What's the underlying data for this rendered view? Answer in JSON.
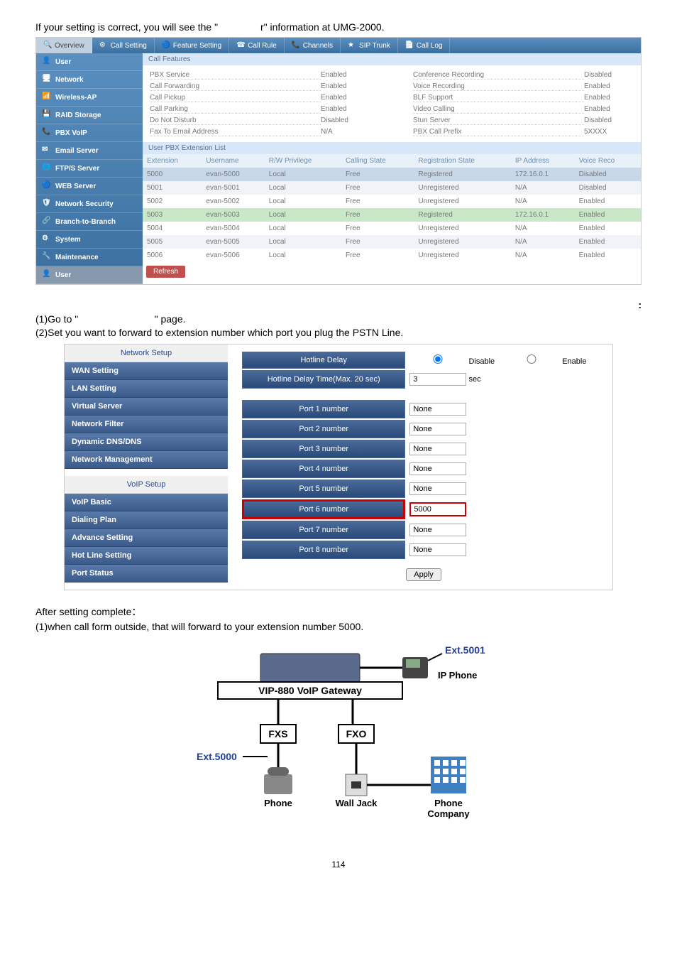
{
  "intro1": "If your setting is correct, you will see the \"",
  "intro2": "r\" information at UMG-2000.",
  "tabs": [
    "Overview",
    "Call Setting",
    "Feature Setting",
    "Call Rule",
    "Channels",
    "SIP Trunk",
    "Call Log"
  ],
  "sidebar_items": [
    "User",
    "Network",
    "Wireless-AP",
    "RAID Storage",
    "PBX VoIP",
    "Email Server",
    "FTP/S Server",
    "WEB Server",
    "Network Security",
    "Branch-to-Branch",
    "System",
    "Maintenance",
    "User"
  ],
  "call_features_header": "Call Features",
  "features_left": [
    {
      "label": "PBX Service",
      "value": "Enabled"
    },
    {
      "label": "Call Forwarding",
      "value": "Enabled"
    },
    {
      "label": "Call Pickup",
      "value": "Enabled"
    },
    {
      "label": "Call Parking",
      "value": "Enabled"
    },
    {
      "label": "Do Not Disturb",
      "value": "Disabled"
    },
    {
      "label": "Fax To Email Address",
      "value": "N/A"
    }
  ],
  "features_right": [
    {
      "label": "Conference Recording",
      "value": "Disabled"
    },
    {
      "label": "Voice Recording",
      "value": "Enabled"
    },
    {
      "label": "BLF Support",
      "value": "Enabled"
    },
    {
      "label": "Video Calling",
      "value": "Enabled"
    },
    {
      "label": "Stun Server",
      "value": "Disabled"
    },
    {
      "label": "PBX Call Prefix",
      "value": "5XXXX"
    }
  ],
  "ext_list_header": "User PBX Extension List",
  "ext_columns": [
    "Extension",
    "Username",
    "R/W Privilege",
    "Calling State",
    "Registration State",
    "IP Address",
    "Voice Reco"
  ],
  "ext_rows": [
    {
      "ext": "5000",
      "user": "evan-5000",
      "priv": "Local",
      "cstate": "Free",
      "rstate": "Registered",
      "ip": "172.16.0.1",
      "voice": "Disabled",
      "cls": "highlight"
    },
    {
      "ext": "5001",
      "user": "evan-5001",
      "priv": "Local",
      "cstate": "Free",
      "rstate": "Unregistered",
      "ip": "N/A",
      "voice": "Disabled",
      "cls": ""
    },
    {
      "ext": "5002",
      "user": "evan-5002",
      "priv": "Local",
      "cstate": "Free",
      "rstate": "Unregistered",
      "ip": "N/A",
      "voice": "Enabled",
      "cls": ""
    },
    {
      "ext": "5003",
      "user": "evan-5003",
      "priv": "Local",
      "cstate": "Free",
      "rstate": "Registered",
      "ip": "172.16.0.1",
      "voice": "Enabled",
      "cls": "highlight-green"
    },
    {
      "ext": "5004",
      "user": "evan-5004",
      "priv": "Local",
      "cstate": "Free",
      "rstate": "Unregistered",
      "ip": "N/A",
      "voice": "Enabled",
      "cls": ""
    },
    {
      "ext": "5005",
      "user": "evan-5005",
      "priv": "Local",
      "cstate": "Free",
      "rstate": "Unregistered",
      "ip": "N/A",
      "voice": "Enabled",
      "cls": ""
    },
    {
      "ext": "5006",
      "user": "evan-5006",
      "priv": "Local",
      "cstate": "Free",
      "rstate": "Unregistered",
      "ip": "N/A",
      "voice": "Enabled",
      "cls": ""
    }
  ],
  "refresh_btn": "Refresh",
  "colon": ":",
  "step1a": "(1)Go to \"",
  "step1b": "\" page.",
  "step2": "(2)Set you want to forward to extension number which port you plug the PSTN Line.",
  "panels": {
    "network": {
      "header": "Network Setup",
      "items": [
        "WAN Setting",
        "LAN Setting",
        "Virtual Server",
        "Network Filter",
        "Dynamic DNS/DNS",
        "Network Management"
      ]
    },
    "voip": {
      "header": "VoIP Setup",
      "items": [
        "VoIP Basic",
        "Dialing Plan",
        "Advance Setting",
        "Hot Line Setting",
        "Port Status"
      ]
    }
  },
  "hotline": {
    "delay_label": "Hotline Delay",
    "delay_disable": "Disable",
    "delay_enable": "Enable",
    "time_label": "Hotline Delay Time(Max. 20 sec)",
    "time_value": "3",
    "time_unit": "sec",
    "ports": [
      {
        "label": "Port 1 number",
        "value": "None",
        "red": false
      },
      {
        "label": "Port 2 number",
        "value": "None",
        "red": false
      },
      {
        "label": "Port 3 number",
        "value": "None",
        "red": false
      },
      {
        "label": "Port 4 number",
        "value": "None",
        "red": false
      },
      {
        "label": "Port 5 number",
        "value": "None",
        "red": false
      },
      {
        "label": "Port 6 number",
        "value": "5000",
        "red": true
      },
      {
        "label": "Port 7 number",
        "value": "None",
        "red": false
      },
      {
        "label": "Port 8 number",
        "value": "None",
        "red": false
      }
    ],
    "apply": "Apply"
  },
  "after1": "After setting complete：",
  "after2": "(1)when call form outside, that will forward to your extension number 5000.",
  "diagram": {
    "gateway": "VIP-880 VoIP Gateway",
    "fxs": "FXS",
    "fxo": "FXO",
    "ext5000": "Ext.5000",
    "ext5001": "Ext.5001",
    "ipphone": "IP Phone",
    "phone": "Phone",
    "walljack": "Wall Jack",
    "company": "Phone Company"
  },
  "page_num": "114"
}
